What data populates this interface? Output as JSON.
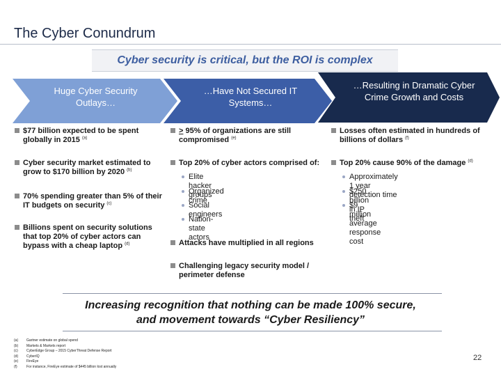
{
  "title": "The Cyber Conundrum",
  "subtitle": "Cyber security is critical, but the ROI is complex",
  "arrows": [
    {
      "text": "Huge Cyber Security Outlays…",
      "color": "#7fa0d6"
    },
    {
      "text": "…Have Not Secured IT Systems…",
      "color": "#3c5ea7"
    },
    {
      "text": "…Resulting in Dramatic Cyber Crime Growth and Costs",
      "color": "#182a4d"
    }
  ],
  "col1": [
    {
      "text": "$77 billion expected to be spent globally in 2015",
      "ref": "(a)"
    },
    {
      "text": "Cyber security market estimated to grow to $170 billion by 2020",
      "ref": "(b)"
    },
    {
      "text": "70% spending greater than 5% of their IT budgets on security",
      "ref": "(c)"
    },
    {
      "text": "Billions spent on security solutions that top 20% of cyber actors can bypass with a cheap laptop",
      "ref": "(d)"
    }
  ],
  "col2": {
    "item1_prefix": ">",
    "item1_rest": "95% of organizations are still compromised",
    "item1_ref": "(e)",
    "item2": "Top 20% of cyber actors comprised of:",
    "item2_subs": [
      "Elite hacker groups",
      "Organized crime",
      "Social engineers",
      "Nation-state actors"
    ],
    "item3": "Attacks have multiplied in all regions",
    "item4": "Challenging legacy security model / perimeter defense"
  },
  "col3": {
    "item1": "Losses often estimated in hundreds of billions of dollars",
    "item1_ref": "(f)",
    "item2": "Top 20% cause 90% of the damage",
    "item2_ref": "(d)",
    "item2_subs": [
      "Approximately 1 year detection time",
      "$250 billion in IP theft",
      "$9 million average response cost"
    ]
  },
  "banner": {
    "line1": "Increasing recognition that nothing can be made 100% secure,",
    "line2": "and movement towards “Cyber Resiliency”"
  },
  "footnotes": [
    {
      "label": "(a)",
      "text": "Gartner estimate on global spend"
    },
    {
      "label": "(b)",
      "text": "Markets & Markets report"
    },
    {
      "label": "(c)",
      "text": "CyberEdge Group – 2015 CyberThreat Defense Report"
    },
    {
      "label": "(d)",
      "text": "CyberIQ"
    },
    {
      "label": "(e)",
      "text": "FireEye"
    },
    {
      "label": "(f)",
      "text": "For instance, FireEye estimate of $445 billion lost annually"
    }
  ],
  "page_number": "22"
}
